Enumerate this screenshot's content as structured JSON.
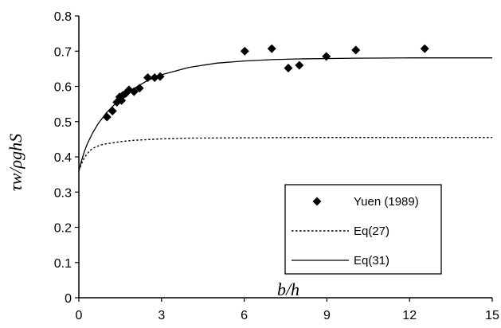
{
  "chart_data": {
    "type": "scatter",
    "title": "",
    "xlabel": "b/h",
    "ylabel": "τw/ρghS",
    "xlim": [
      0,
      15
    ],
    "ylim": [
      0,
      0.8
    ],
    "xticks": [
      0,
      3,
      6,
      9,
      12,
      15
    ],
    "yticks": [
      0,
      0.1,
      0.2,
      0.3,
      0.4,
      0.5,
      0.6,
      0.7,
      0.8
    ],
    "grid": false,
    "legend_position": "bottom-right",
    "series": [
      {
        "name": "Yuen (1989)",
        "kind": "markers",
        "marker": "diamond",
        "color": "#000000",
        "x": [
          1.02,
          1.22,
          1.38,
          1.48,
          1.55,
          1.6,
          1.7,
          1.82,
          2.0,
          2.2,
          2.5,
          2.75,
          2.95,
          6.02,
          7.0,
          7.6,
          8.0,
          8.98,
          10.05,
          12.55
        ],
        "y": [
          0.513,
          0.53,
          0.555,
          0.57,
          0.56,
          0.575,
          0.58,
          0.59,
          0.585,
          0.595,
          0.625,
          0.625,
          0.628,
          0.7,
          0.707,
          0.652,
          0.66,
          0.685,
          0.703,
          0.707
        ]
      },
      {
        "name": "Eq(27)",
        "kind": "line",
        "style": "dotted",
        "color": "#000000",
        "x": [
          0,
          0.1,
          0.2,
          0.4,
          0.6,
          0.8,
          1.0,
          1.5,
          2.0,
          3.0,
          4.0,
          6.0,
          8.0,
          10.0,
          12.0,
          15.0
        ],
        "y": [
          0.36,
          0.381,
          0.398,
          0.418,
          0.428,
          0.434,
          0.437,
          0.443,
          0.447,
          0.451,
          0.453,
          0.454,
          0.455,
          0.455,
          0.455,
          0.455
        ]
      },
      {
        "name": "Eq(31)",
        "kind": "line",
        "style": "solid",
        "color": "#000000",
        "x": [
          0,
          0.1,
          0.2,
          0.3,
          0.5,
          0.7,
          1.0,
          1.5,
          2.0,
          2.5,
          3.0,
          4.0,
          5.0,
          6.0,
          7.0,
          8.0,
          10.0,
          12.0,
          15.0
        ],
        "y": [
          0.36,
          0.39,
          0.415,
          0.436,
          0.468,
          0.494,
          0.525,
          0.565,
          0.594,
          0.617,
          0.633,
          0.654,
          0.666,
          0.672,
          0.676,
          0.678,
          0.68,
          0.681,
          0.681
        ]
      }
    ]
  }
}
